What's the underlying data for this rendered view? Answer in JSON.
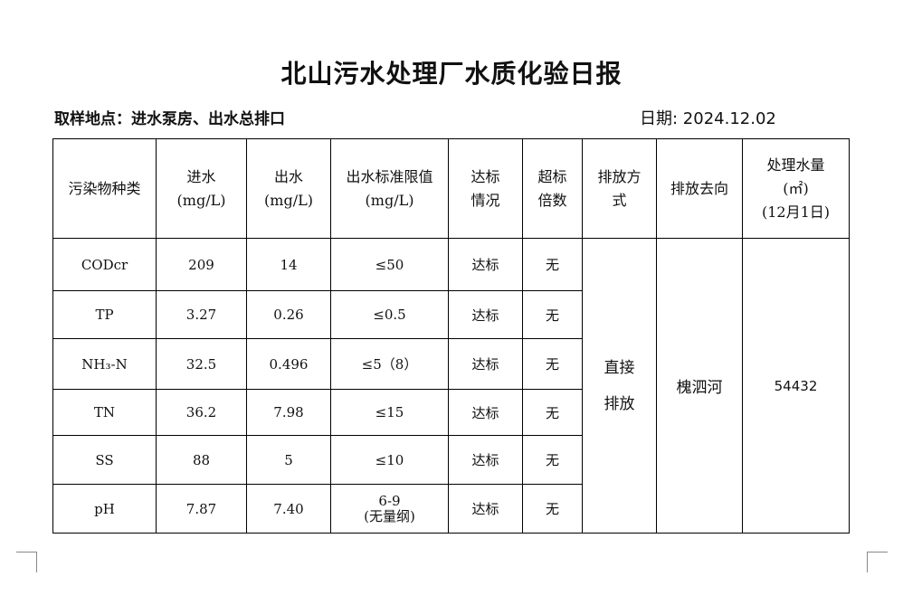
{
  "title": "北山污水处理厂水质化验日报",
  "sampling_location": "取样地点：进水泵房、出水总排口",
  "date": "日期: 2024.12.02",
  "headers": {
    "pollutant": "污染物种类",
    "influent_l1": "进水",
    "influent_l2": "(mg/L)",
    "effluent_l1": "出水",
    "effluent_l2": "(mg/L)",
    "limit_l1": "出水标准限值",
    "limit_l2": "(mg/L)",
    "compliance_l1": "达标",
    "compliance_l2": "情况",
    "exceed_l1": "超标",
    "exceed_l2": "倍数",
    "discharge_mode_l1": "排放方",
    "discharge_mode_l2": "式",
    "discharge_to": "排放去向",
    "volume_l1": "处理水量",
    "volume_l2": "(㎡)",
    "volume_l3": "(12月1日)"
  },
  "rows": [
    {
      "pollutant": "CODcr",
      "influent": "209",
      "effluent": "14",
      "limit": "≤50",
      "limit_note": "",
      "compliance": "达标",
      "exceed": "无"
    },
    {
      "pollutant": "TP",
      "influent": "3.27",
      "effluent": "0.26",
      "limit": "≤0.5",
      "limit_note": "",
      "compliance": "达标",
      "exceed": "无"
    },
    {
      "pollutant": "NH₃-N",
      "influent": "32.5",
      "effluent": "0.496",
      "limit": "≤5（8）",
      "limit_note": "",
      "compliance": "达标",
      "exceed": "无"
    },
    {
      "pollutant": "TN",
      "influent": "36.2",
      "effluent": "7.98",
      "limit": "≤15",
      "limit_note": "",
      "compliance": "达标",
      "exceed": "无"
    },
    {
      "pollutant": "SS",
      "influent": "88",
      "effluent": "5",
      "limit": "≤10",
      "limit_note": "",
      "compliance": "达标",
      "exceed": "无"
    },
    {
      "pollutant": "pH",
      "influent": "7.87",
      "effluent": "7.40",
      "limit": "6-9",
      "limit_note": "(无量纲)",
      "compliance": "达标",
      "exceed": "无"
    }
  ],
  "discharge_mode_l1": "直接",
  "discharge_mode_l2": "排放",
  "discharge_to": "槐泗河",
  "treated_volume": "54432"
}
